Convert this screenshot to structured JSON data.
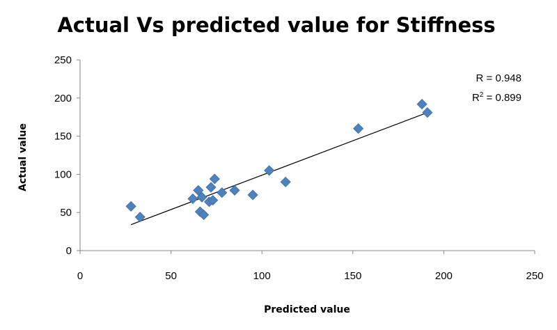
{
  "chart_data": {
    "type": "scatter",
    "title": "Actual Vs predicted value for Stiffness",
    "xlabel": "Predicted value",
    "ylabel": "Actual value",
    "xlim": [
      0,
      250
    ],
    "ylim": [
      0,
      250
    ],
    "xticks": [
      "0",
      "50",
      "100",
      "150",
      "200",
      "250"
    ],
    "yticks": [
      "0",
      "50",
      "100",
      "150",
      "200",
      "250"
    ],
    "grid": false,
    "legend": "none",
    "marker_color": "#4f81bd",
    "trendline": {
      "type": "linear",
      "color": "#000000",
      "from": [
        28,
        34
      ],
      "to": [
        190,
        180
      ]
    },
    "annotations": {
      "r": "R = 0.948",
      "r2_prefix": "R",
      "r2_sup": "2",
      "r2_suffix": " = 0.899"
    },
    "series": [
      {
        "points": [
          {
            "x": 28,
            "y": 58
          },
          {
            "x": 33,
            "y": 44
          },
          {
            "x": 62,
            "y": 68
          },
          {
            "x": 65,
            "y": 79
          },
          {
            "x": 66,
            "y": 51
          },
          {
            "x": 67,
            "y": 70
          },
          {
            "x": 68,
            "y": 47
          },
          {
            "x": 71,
            "y": 64
          },
          {
            "x": 72,
            "y": 83
          },
          {
            "x": 73,
            "y": 66
          },
          {
            "x": 74,
            "y": 94
          },
          {
            "x": 78,
            "y": 76
          },
          {
            "x": 85,
            "y": 79
          },
          {
            "x": 95,
            "y": 73
          },
          {
            "x": 104,
            "y": 105
          },
          {
            "x": 113,
            "y": 90
          },
          {
            "x": 153,
            "y": 160
          },
          {
            "x": 188,
            "y": 192
          },
          {
            "x": 191,
            "y": 181
          }
        ]
      }
    ]
  }
}
